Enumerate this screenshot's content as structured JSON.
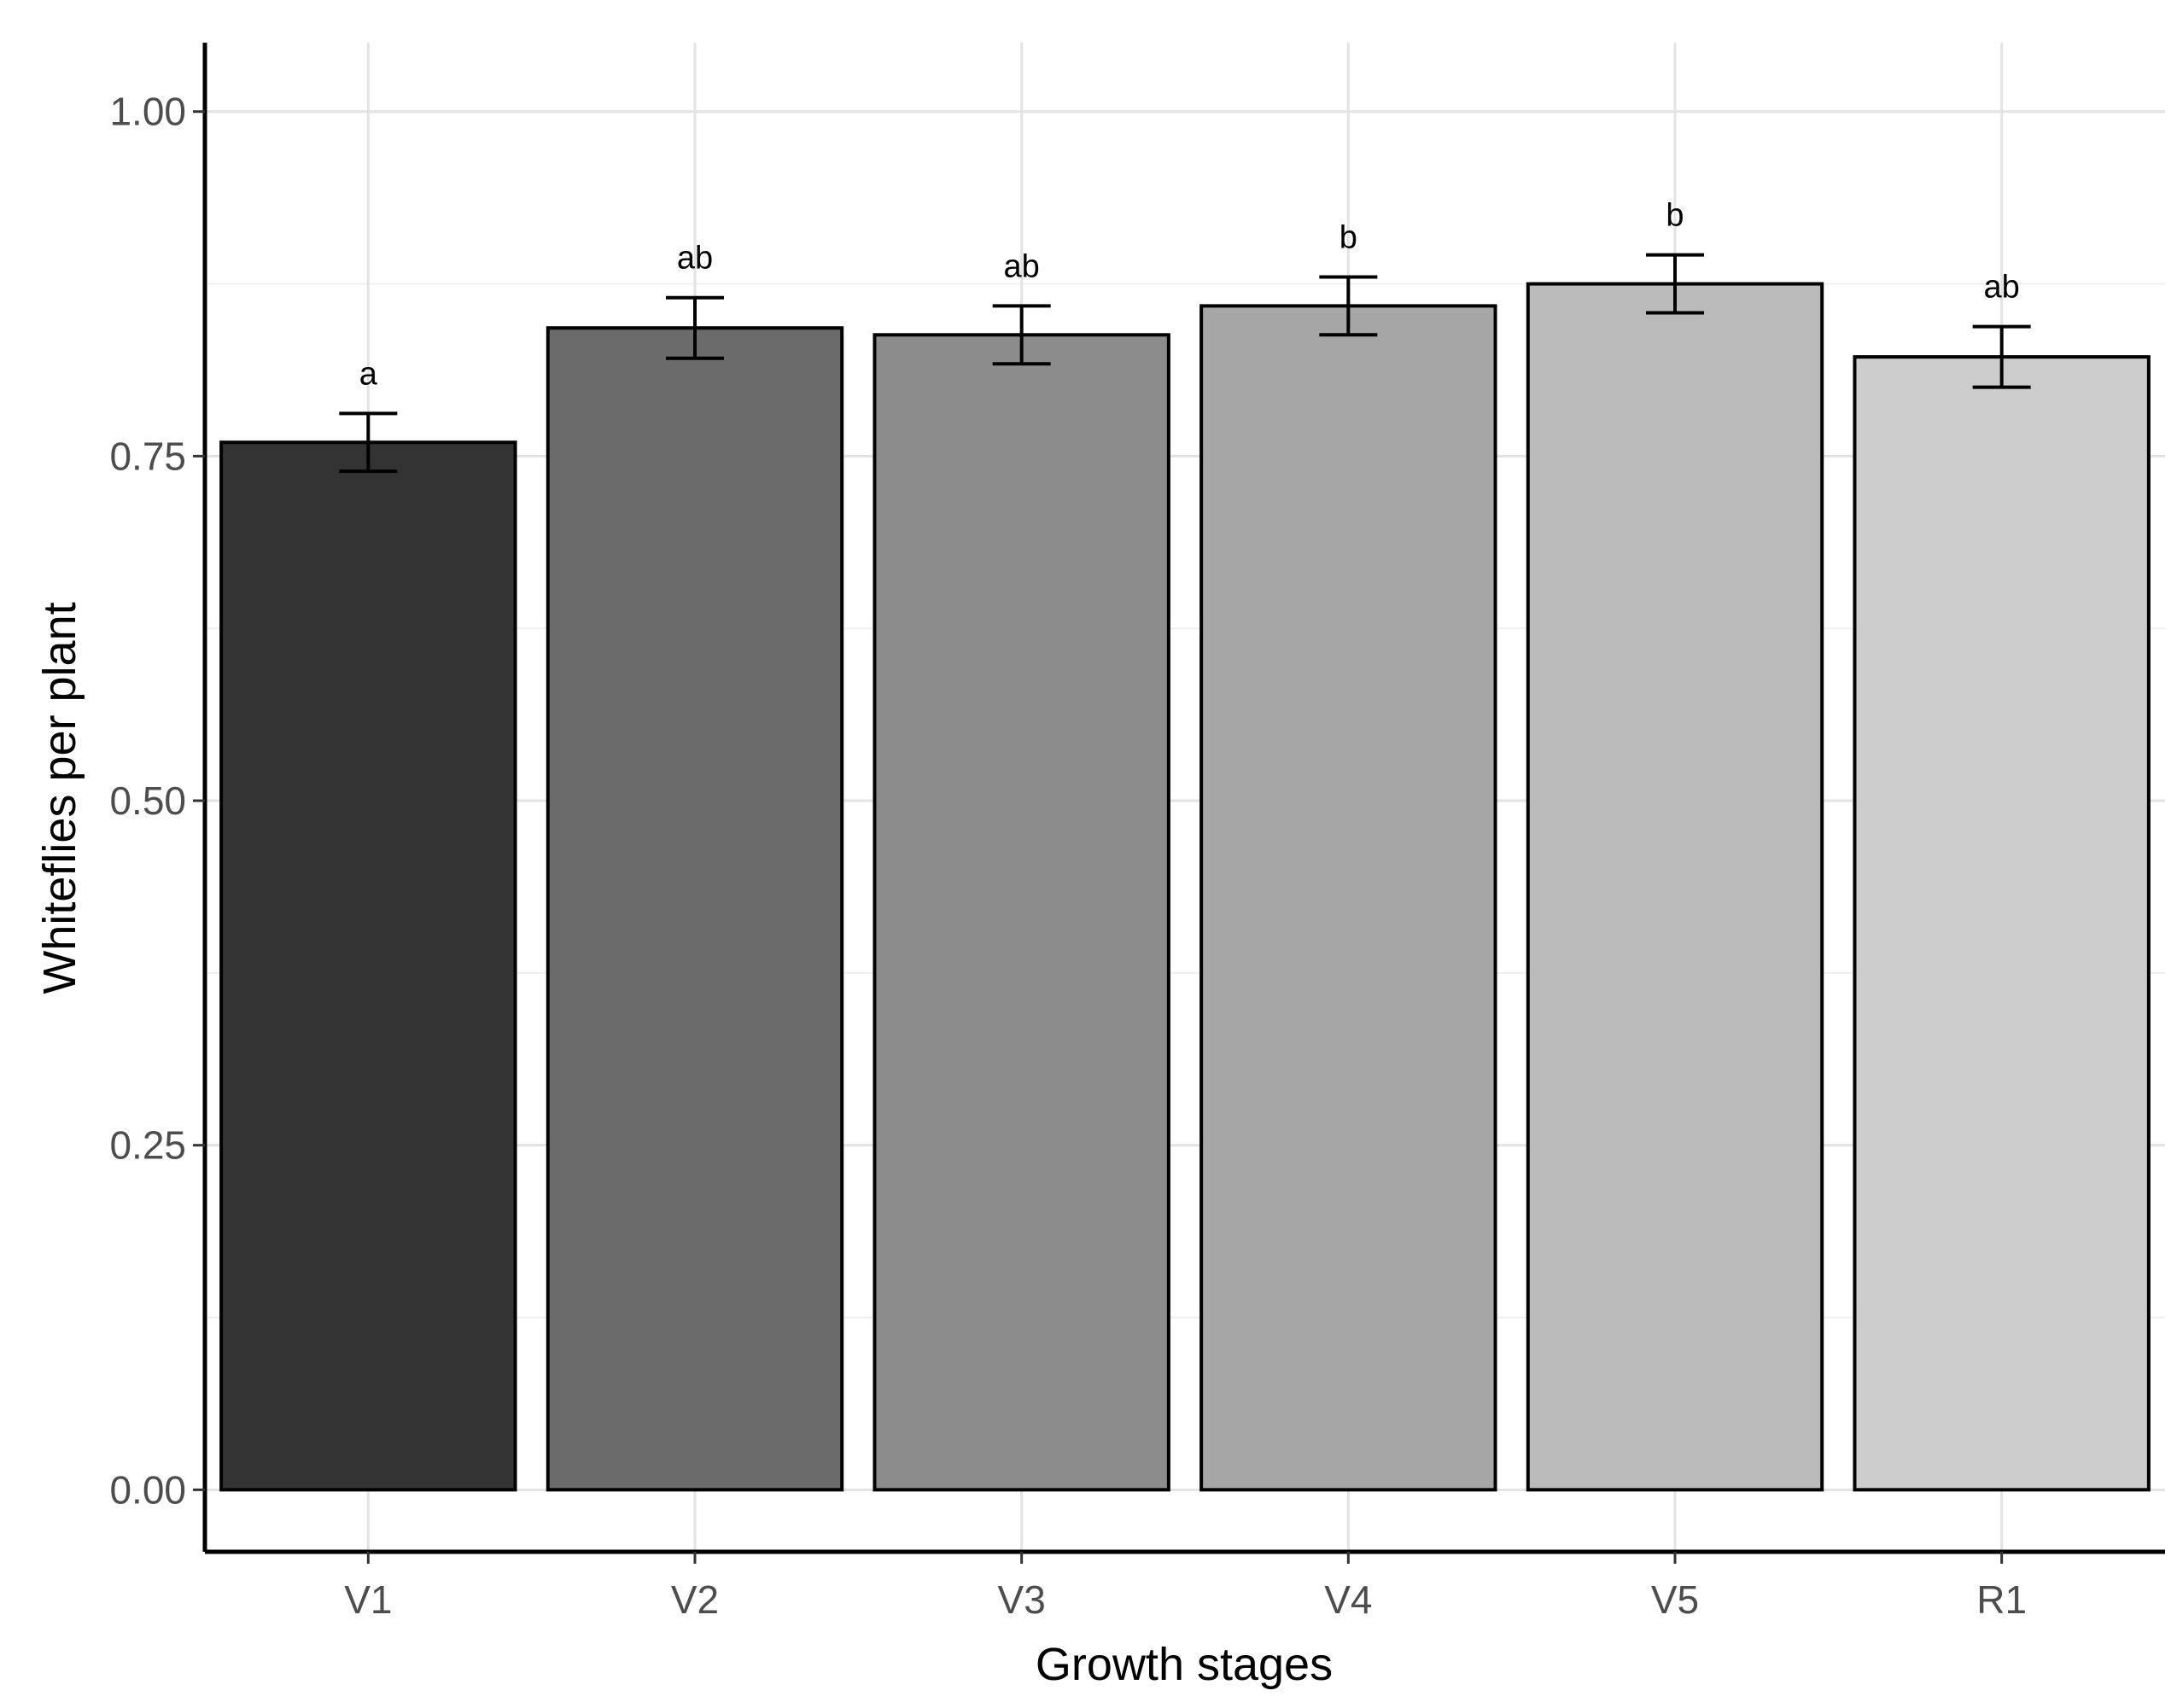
{
  "chart_data": {
    "type": "bar",
    "title": "",
    "xlabel": "Growth stages",
    "ylabel": "Whiteflies per plant",
    "categories": [
      "V1",
      "V2",
      "V3",
      "V4",
      "V5",
      "R1"
    ],
    "values": [
      0.76,
      0.843,
      0.838,
      0.859,
      0.875,
      0.822
    ],
    "errors": [
      0.021,
      0.022,
      0.021,
      0.021,
      0.021,
      0.022
    ],
    "significance_labels": [
      "a",
      "ab",
      "ab",
      "b",
      "b",
      "ab"
    ],
    "bar_colors": [
      "#333333",
      "#6b6b6b",
      "#8c8c8c",
      "#a6a6a6",
      "#bababa",
      "#cccccc"
    ],
    "ylim": [
      -0.045,
      1.05
    ],
    "yticks": [
      0.0,
      0.25,
      0.5,
      0.75,
      1.0
    ],
    "ytick_labels": [
      "0.00",
      "0.25",
      "0.50",
      "0.75",
      "1.00"
    ],
    "grid": true,
    "legend": "none"
  }
}
